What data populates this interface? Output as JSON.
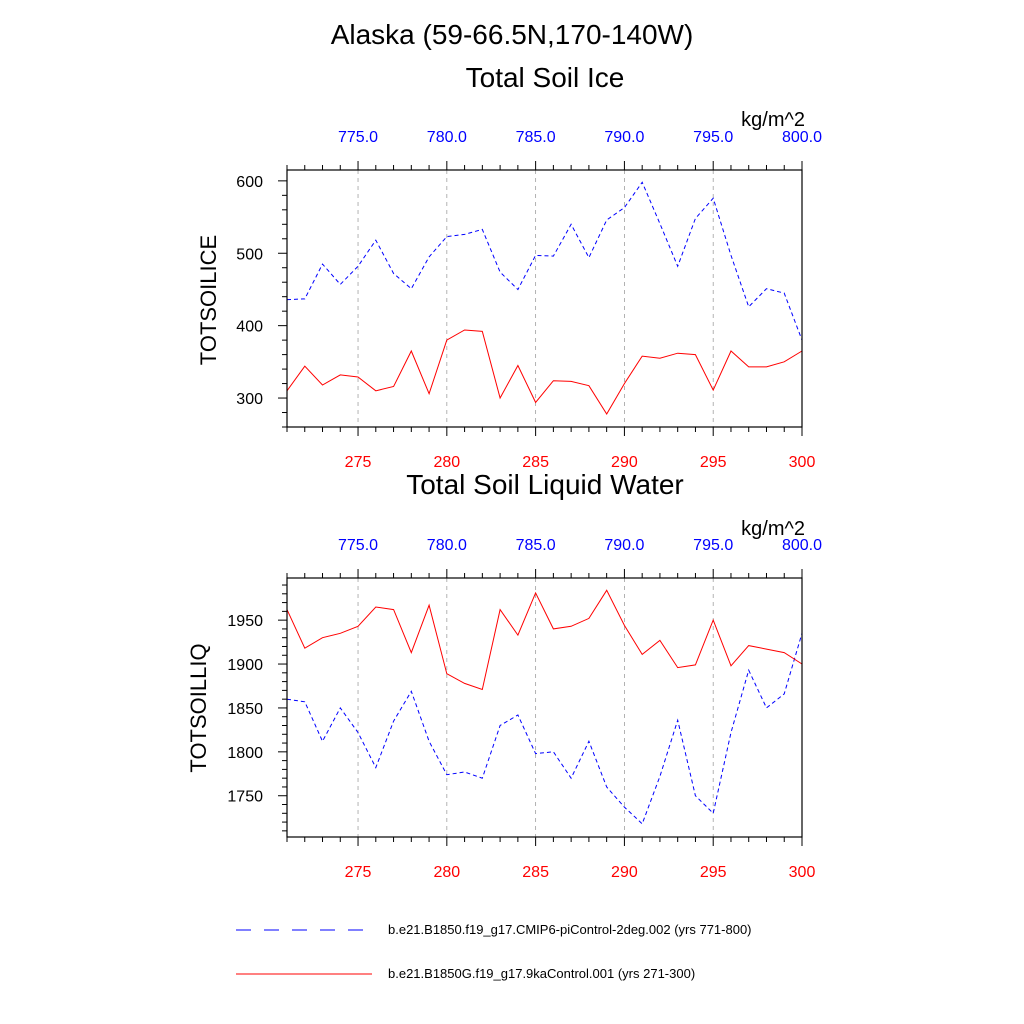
{
  "figure": {
    "main_title": "Alaska (59-66.5N,170-140W)"
  },
  "colors": {
    "model_a": "#0000ff",
    "model_b": "#ff0000",
    "axis": "#000000",
    "grid": "#a0a0a0"
  },
  "legend": {
    "items": [
      {
        "label": "b.e21.B1850.f19_g17.CMIP6-piControl-2deg.002 (yrs 771-800)",
        "color": "#0000ff",
        "style": "dashed"
      },
      {
        "label": "b.e21.B1850G.f19_g17.9kaControl.001 (yrs 271-300)",
        "color": "#ff0000",
        "style": "solid"
      }
    ]
  },
  "chart_data": [
    {
      "type": "line",
      "title": "Total Soil Ice",
      "ylabel": "TOTSOILICE",
      "units": "kg/m^2",
      "ylim": [
        260,
        615
      ],
      "yticks": [
        300,
        400,
        500,
        600
      ],
      "ytick_labels": [
        "300",
        "400",
        "500",
        "600"
      ],
      "bottom_axis": {
        "range": [
          271,
          300
        ],
        "ticks": [
          275,
          280,
          285,
          290,
          295,
          300
        ],
        "tick_labels": [
          "275",
          "280",
          "285",
          "290",
          "295",
          "300"
        ]
      },
      "top_axis": {
        "range": [
          771,
          800
        ],
        "ticks": [
          775,
          780,
          785,
          790,
          795,
          800
        ],
        "tick_labels": [
          "775.0",
          "780.0",
          "785.0",
          "790.0",
          "795.0",
          "800.0"
        ]
      },
      "x": [
        271,
        272,
        273,
        274,
        275,
        276,
        277,
        278,
        279,
        280,
        281,
        282,
        283,
        284,
        285,
        286,
        287,
        288,
        289,
        290,
        291,
        292,
        293,
        294,
        295,
        296,
        297,
        298,
        299,
        300
      ],
      "series": [
        {
          "name": "b.e21.B1850.f19_g17.CMIP6-piControl-2deg.002 (yrs 771-800)",
          "axis": "top",
          "values": [
            436,
            437,
            485,
            457,
            482,
            518,
            472,
            451,
            495,
            523,
            526,
            533,
            474,
            450,
            497,
            496,
            540,
            494,
            546,
            563,
            598,
            541,
            482,
            548,
            576,
            497,
            426,
            451,
            445,
            380
          ]
        },
        {
          "name": "b.e21.B1850G.f19_g17.9kaControl.001 (yrs 271-300)",
          "axis": "bottom",
          "values": [
            310,
            344,
            318,
            332,
            329,
            310,
            316,
            365,
            306,
            380,
            394,
            392,
            300,
            345,
            294,
            324,
            323,
            317,
            278,
            320,
            358,
            355,
            362,
            360,
            311,
            365,
            343,
            343,
            350,
            365
          ]
        }
      ]
    },
    {
      "type": "line",
      "title": "Total Soil Liquid Water",
      "ylabel": "TOTSOILLIQ",
      "units": "kg/m^2",
      "ylim": [
        1703,
        1998
      ],
      "yticks": [
        1750,
        1800,
        1850,
        1900,
        1950
      ],
      "ytick_labels": [
        "1750",
        "1800",
        "1850",
        "1900",
        "1950"
      ],
      "bottom_axis": {
        "range": [
          271,
          300
        ],
        "ticks": [
          275,
          280,
          285,
          290,
          295,
          300
        ],
        "tick_labels": [
          "275",
          "280",
          "285",
          "290",
          "295",
          "300"
        ]
      },
      "top_axis": {
        "range": [
          771,
          800
        ],
        "ticks": [
          775,
          780,
          785,
          790,
          795,
          800
        ],
        "tick_labels": [
          "775.0",
          "780.0",
          "785.0",
          "790.0",
          "795.0",
          "800.0"
        ]
      },
      "x": [
        271,
        272,
        273,
        274,
        275,
        276,
        277,
        278,
        279,
        280,
        281,
        282,
        283,
        284,
        285,
        286,
        287,
        288,
        289,
        290,
        291,
        292,
        293,
        294,
        295,
        296,
        297,
        298,
        299,
        300
      ],
      "series": [
        {
          "name": "b.e21.B1850.f19_g17.CMIP6-piControl-2deg.002 (yrs 771-800)",
          "axis": "top",
          "values": [
            1860,
            1857,
            1812,
            1850,
            1822,
            1782,
            1835,
            1869,
            1812,
            1774,
            1777,
            1770,
            1830,
            1842,
            1798,
            1800,
            1770,
            1812,
            1760,
            1737,
            1718,
            1772,
            1836,
            1750,
            1730,
            1822,
            1893,
            1850,
            1866,
            1935
          ]
        },
        {
          "name": "b.e21.B1850G.f19_g17.9kaControl.001 (yrs 271-300)",
          "axis": "bottom",
          "values": [
            1962,
            1918,
            1930,
            1935,
            1943,
            1965,
            1962,
            1913,
            1967,
            1889,
            1878,
            1871,
            1962,
            1933,
            1981,
            1940,
            1943,
            1952,
            1984,
            1944,
            1911,
            1927,
            1896,
            1899,
            1950,
            1898,
            1921,
            1917,
            1913,
            1900
          ]
        }
      ]
    }
  ]
}
